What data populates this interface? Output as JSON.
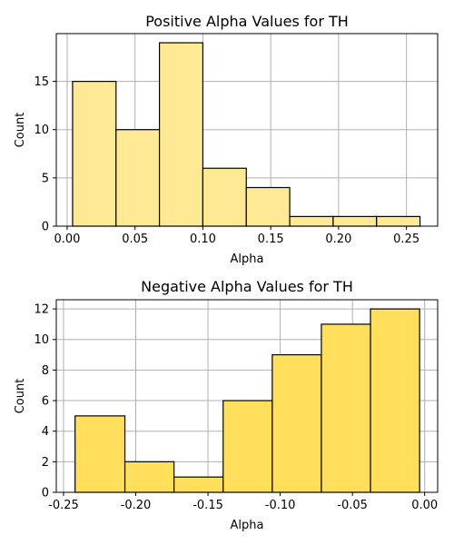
{
  "chart_data": [
    {
      "type": "bar",
      "title": "Positive Alpha Values for TH",
      "xlabel": "Alpha",
      "ylabel": "Count",
      "bin_edges": [
        0.004,
        0.036,
        0.068,
        0.1,
        0.132,
        0.164,
        0.196,
        0.228,
        0.26
      ],
      "values": [
        15,
        10,
        19,
        6,
        4,
        1,
        1,
        1
      ],
      "xlim": [
        -0.008,
        0.273
      ],
      "ylim": [
        0,
        19.95
      ],
      "xticks": [
        "0.00",
        "0.05",
        "0.10",
        "0.15",
        "0.20",
        "0.25"
      ],
      "yticks": [
        "0",
        "5",
        "10",
        "15"
      ],
      "grid": true,
      "bar_color": "#ffe994",
      "edge_color": "#000000"
    },
    {
      "type": "bar",
      "title": "Negative Alpha Values for TH",
      "xlabel": "Alpha",
      "ylabel": "Count",
      "bin_edges": [
        -0.242,
        -0.2075,
        -0.1735,
        -0.1395,
        -0.1055,
        -0.0715,
        -0.0375,
        -0.0035
      ],
      "values": [
        5,
        2,
        1,
        6,
        9,
        11,
        12
      ],
      "xlim": [
        -0.255,
        0.009
      ],
      "ylim": [
        0,
        12.6
      ],
      "xticks": [
        "-0.25",
        "-0.20",
        "-0.15",
        "-0.10",
        "-0.05",
        "0.00"
      ],
      "yticks": [
        "0",
        "2",
        "4",
        "6",
        "8",
        "10",
        "12"
      ],
      "grid": true,
      "bar_color": "#ffdf5b",
      "edge_color": "#000000"
    }
  ]
}
